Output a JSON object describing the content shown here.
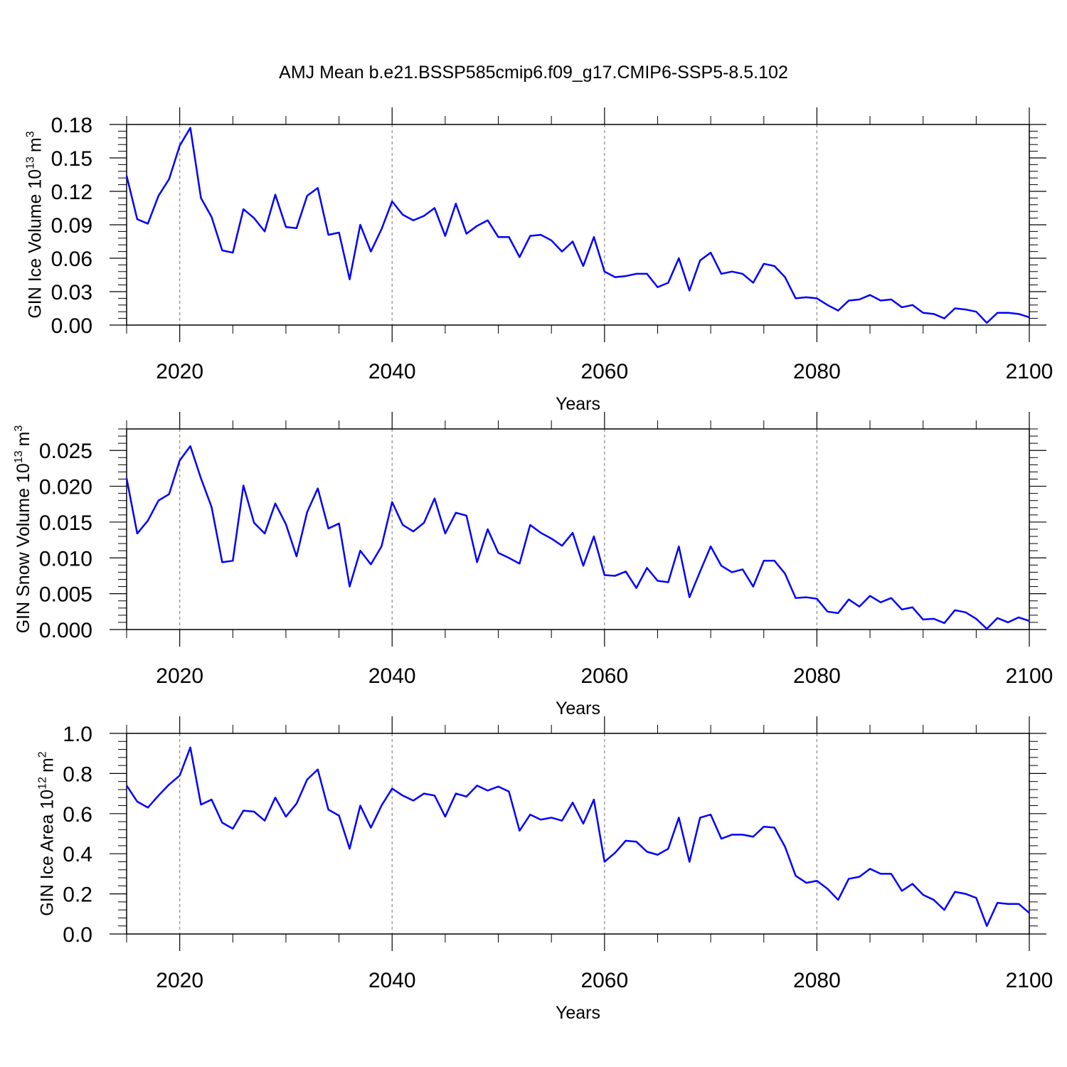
{
  "title": "AMJ Mean b.e21.BSSP585cmip6.f09_g17.CMIP6-SSP5-8.5.102",
  "chart_data": [
    {
      "type": "line",
      "ylabel": "GIN Ice Volume 10",
      "ylabel_exp": "13",
      "ylabel_unit": "m",
      "ylabel_unit_exp": "3",
      "xlabel": "Years",
      "xlim": [
        2015,
        2100
      ],
      "xticks": [
        2020,
        2040,
        2060,
        2080,
        2100
      ],
      "xgrid": true,
      "ylim": [
        0,
        0.18
      ],
      "yticks": [
        {
          "value": 0,
          "label": "0.00"
        },
        0.03,
        0.06,
        0.09,
        0.12,
        0.15,
        0.18
      ],
      "x": [
        2015,
        2016,
        2017,
        2018,
        2019,
        2020,
        2021,
        2022,
        2023,
        2024,
        2025,
        2026,
        2027,
        2028,
        2029,
        2030,
        2031,
        2032,
        2033,
        2034,
        2035,
        2036,
        2037,
        2038,
        2039,
        2040,
        2041,
        2042,
        2043,
        2044,
        2045,
        2046,
        2047,
        2048,
        2049,
        2050,
        2051,
        2052,
        2053,
        2054,
        2055,
        2056,
        2057,
        2058,
        2059,
        2060,
        2061,
        2062,
        2063,
        2064,
        2065,
        2066,
        2067,
        2068,
        2069,
        2070,
        2071,
        2072,
        2073,
        2074,
        2075,
        2076,
        2077,
        2078,
        2079,
        2080,
        2081,
        2082,
        2083,
        2084,
        2085,
        2086,
        2087,
        2088,
        2089,
        2090,
        2091,
        2092,
        2093,
        2094,
        2095,
        2096,
        2097,
        2098,
        2099,
        2100
      ],
      "series": [
        {
          "color": "#0000ff",
          "values": [
            0.134,
            0.095,
            0.091,
            0.116,
            0.131,
            0.161,
            0.177,
            0.114,
            0.097,
            0.067,
            0.065,
            0.104,
            0.096,
            0.084,
            0.117,
            0.088,
            0.087,
            0.116,
            0.123,
            0.081,
            0.083,
            0.041,
            0.09,
            0.066,
            0.086,
            0.111,
            0.099,
            0.094,
            0.098,
            0.105,
            0.08,
            0.109,
            0.082,
            0.089,
            0.094,
            0.079,
            0.079,
            0.061,
            0.08,
            0.081,
            0.076,
            0.066,
            0.075,
            0.053,
            0.079,
            0.048,
            0.043,
            0.044,
            0.046,
            0.046,
            0.034,
            0.038,
            0.06,
            0.031,
            0.058,
            0.065,
            0.046,
            0.048,
            0.046,
            0.038,
            0.055,
            0.053,
            0.043,
            0.024,
            0.025,
            0.024,
            0.018,
            0.013,
            0.022,
            0.023,
            0.027,
            0.022,
            0.023,
            0.016,
            0.018,
            0.011,
            0.01,
            0.006,
            0.015,
            0.014,
            0.012,
            0.002,
            0.011,
            0.011,
            0.01,
            0.007
          ]
        }
      ]
    },
    {
      "type": "line",
      "ylabel": "GIN Snow Volume 10",
      "ylabel_exp": "13",
      "ylabel_unit": "m",
      "ylabel_unit_exp": "3",
      "xlabel": "Years",
      "xlim": [
        2015,
        2100
      ],
      "xticks": [
        2020,
        2040,
        2060,
        2080,
        2100
      ],
      "xgrid": true,
      "ylim": [
        0,
        0.028
      ],
      "yticks": [
        {
          "value": 0,
          "label": "0.000"
        },
        0.005,
        {
          "value": 0.01,
          "label": "0.010"
        },
        0.015,
        {
          "value": 0.02,
          "label": "0.020"
        },
        0.025
      ],
      "x": [
        2015,
        2016,
        2017,
        2018,
        2019,
        2020,
        2021,
        2022,
        2023,
        2024,
        2025,
        2026,
        2027,
        2028,
        2029,
        2030,
        2031,
        2032,
        2033,
        2034,
        2035,
        2036,
        2037,
        2038,
        2039,
        2040,
        2041,
        2042,
        2043,
        2044,
        2045,
        2046,
        2047,
        2048,
        2049,
        2050,
        2051,
        2052,
        2053,
        2054,
        2055,
        2056,
        2057,
        2058,
        2059,
        2060,
        2061,
        2062,
        2063,
        2064,
        2065,
        2066,
        2067,
        2068,
        2069,
        2070,
        2071,
        2072,
        2073,
        2074,
        2075,
        2076,
        2077,
        2078,
        2079,
        2080,
        2081,
        2082,
        2083,
        2084,
        2085,
        2086,
        2087,
        2088,
        2089,
        2090,
        2091,
        2092,
        2093,
        2094,
        2095,
        2096,
        2097,
        2098,
        2099,
        2100
      ],
      "series": [
        {
          "color": "#0000ff",
          "values": [
            0.0211,
            0.0134,
            0.0152,
            0.018,
            0.0189,
            0.0236,
            0.0256,
            0.0211,
            0.0171,
            0.0094,
            0.0096,
            0.0201,
            0.0149,
            0.0134,
            0.0176,
            0.0147,
            0.0102,
            0.0164,
            0.0197,
            0.0141,
            0.0148,
            0.006,
            0.011,
            0.0091,
            0.0116,
            0.0178,
            0.0146,
            0.0137,
            0.0149,
            0.0183,
            0.0134,
            0.0163,
            0.0159,
            0.0094,
            0.014,
            0.0107,
            0.01,
            0.0092,
            0.0146,
            0.0135,
            0.0127,
            0.0117,
            0.0135,
            0.0089,
            0.013,
            0.0076,
            0.0075,
            0.0081,
            0.0058,
            0.0086,
            0.0068,
            0.0066,
            0.0116,
            0.0045,
            0.0081,
            0.0116,
            0.0089,
            0.008,
            0.0084,
            0.006,
            0.0096,
            0.0096,
            0.0078,
            0.0044,
            0.0045,
            0.0043,
            0.0025,
            0.0023,
            0.0042,
            0.0032,
            0.0047,
            0.0038,
            0.0044,
            0.0028,
            0.0031,
            0.0014,
            0.0015,
            0.0009,
            0.0027,
            0.0024,
            0.0015,
            0.0001,
            0.0016,
            0.001,
            0.0017,
            0.0012
          ]
        }
      ]
    },
    {
      "type": "line",
      "ylabel": "GIN Ice Area 10",
      "ylabel_exp": "12",
      "ylabel_unit": "m",
      "ylabel_unit_exp": "2",
      "xlabel": "Years",
      "xlim": [
        2015,
        2100
      ],
      "xticks": [
        2020,
        2040,
        2060,
        2080,
        2100
      ],
      "xgrid": true,
      "ylim": [
        0,
        1
      ],
      "yticks": [
        {
          "value": 0,
          "label": "0.0"
        },
        0.2,
        0.4,
        0.6,
        0.8,
        {
          "value": 1,
          "label": "1.0"
        }
      ],
      "x": [
        2015,
        2016,
        2017,
        2018,
        2019,
        2020,
        2021,
        2022,
        2023,
        2024,
        2025,
        2026,
        2027,
        2028,
        2029,
        2030,
        2031,
        2032,
        2033,
        2034,
        2035,
        2036,
        2037,
        2038,
        2039,
        2040,
        2041,
        2042,
        2043,
        2044,
        2045,
        2046,
        2047,
        2048,
        2049,
        2050,
        2051,
        2052,
        2053,
        2054,
        2055,
        2056,
        2057,
        2058,
        2059,
        2060,
        2061,
        2062,
        2063,
        2064,
        2065,
        2066,
        2067,
        2068,
        2069,
        2070,
        2071,
        2072,
        2073,
        2074,
        2075,
        2076,
        2077,
        2078,
        2079,
        2080,
        2081,
        2082,
        2083,
        2084,
        2085,
        2086,
        2087,
        2088,
        2089,
        2090,
        2091,
        2092,
        2093,
        2094,
        2095,
        2096,
        2097,
        2098,
        2099,
        2100
      ],
      "series": [
        {
          "color": "#0000ff",
          "values": [
            0.74,
            0.66,
            0.63,
            0.69,
            0.745,
            0.79,
            0.93,
            0.645,
            0.67,
            0.555,
            0.525,
            0.615,
            0.61,
            0.565,
            0.68,
            0.585,
            0.65,
            0.77,
            0.82,
            0.62,
            0.59,
            0.425,
            0.64,
            0.53,
            0.64,
            0.725,
            0.69,
            0.665,
            0.7,
            0.69,
            0.585,
            0.7,
            0.685,
            0.74,
            0.715,
            0.735,
            0.71,
            0.515,
            0.595,
            0.57,
            0.58,
            0.565,
            0.655,
            0.55,
            0.67,
            0.36,
            0.405,
            0.465,
            0.46,
            0.41,
            0.395,
            0.425,
            0.58,
            0.36,
            0.58,
            0.595,
            0.475,
            0.495,
            0.495,
            0.485,
            0.535,
            0.53,
            0.435,
            0.29,
            0.255,
            0.265,
            0.225,
            0.17,
            0.275,
            0.285,
            0.325,
            0.3,
            0.3,
            0.215,
            0.25,
            0.195,
            0.17,
            0.12,
            0.21,
            0.2,
            0.18,
            0.04,
            0.155,
            0.15,
            0.15,
            0.105
          ]
        }
      ]
    }
  ]
}
